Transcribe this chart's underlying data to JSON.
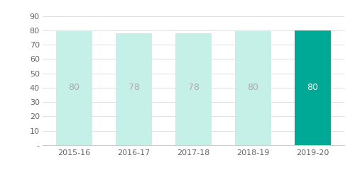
{
  "categories": [
    "2015-16",
    "2016-17",
    "2017-18",
    "2018-19",
    "2019-20"
  ],
  "values": [
    80,
    78,
    78,
    80,
    80
  ],
  "bar_colors": [
    "#c5f0e8",
    "#c5f0e8",
    "#c5f0e8",
    "#c5f0e8",
    "#00a896"
  ],
  "label_colors": [
    "#aaaaaa",
    "#aaaaaa",
    "#aaaaaa",
    "#aaaaaa",
    "#ffffff"
  ],
  "yticks": [
    0,
    10,
    20,
    30,
    40,
    50,
    60,
    70,
    80,
    90
  ],
  "ytick_labels": [
    "-",
    "10",
    "20",
    "30",
    "40",
    "50",
    "60",
    "70",
    "80",
    "90"
  ],
  "ylim": [
    0,
    95
  ],
  "bar_width": 0.6,
  "label_fontsize": 9,
  "tick_fontsize": 8,
  "background_color": "#ffffff",
  "grid_color": "#e0e0e0",
  "spine_color": "#cccccc"
}
